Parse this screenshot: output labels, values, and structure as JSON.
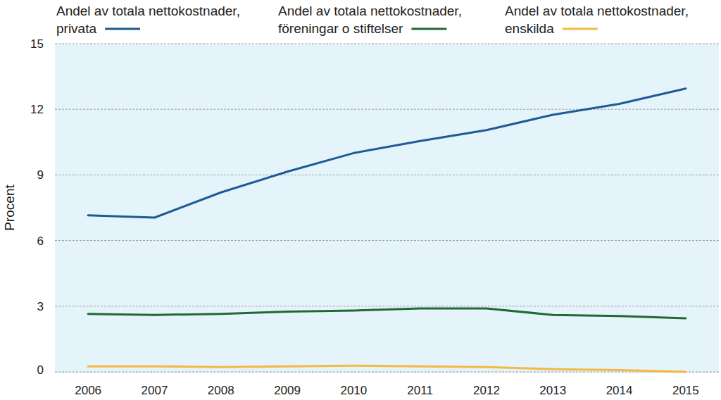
{
  "chart_data": {
    "type": "line",
    "y_label": "Procent",
    "categories": [
      "2006",
      "2007",
      "2008",
      "2009",
      "2010",
      "2011",
      "2012",
      "2013",
      "2014",
      "2015"
    ],
    "series": [
      {
        "name": "Andel av totala nettokostnader, privata",
        "color": "#1f5a96",
        "values": [
          7.15,
          7.05,
          8.2,
          9.15,
          10.0,
          10.55,
          11.05,
          11.75,
          12.25,
          12.95
        ]
      },
      {
        "name": "Andel av totala nettokostnader, föreningar o stiftelser",
        "color": "#1e6b30",
        "values": [
          2.65,
          2.6,
          2.65,
          2.75,
          2.8,
          2.9,
          2.9,
          2.6,
          2.55,
          2.45
        ]
      },
      {
        "name": "Andel av totala nettokostnader, enskilda",
        "color": "#f5b942",
        "values": [
          0.25,
          0.25,
          0.22,
          0.25,
          0.28,
          0.25,
          0.22,
          0.12,
          0.08,
          0.0
        ]
      }
    ],
    "ylim": [
      0,
      15
    ],
    "yticks": [
      0,
      3,
      6,
      9,
      12,
      15
    ],
    "grid": true,
    "legend": "top"
  }
}
